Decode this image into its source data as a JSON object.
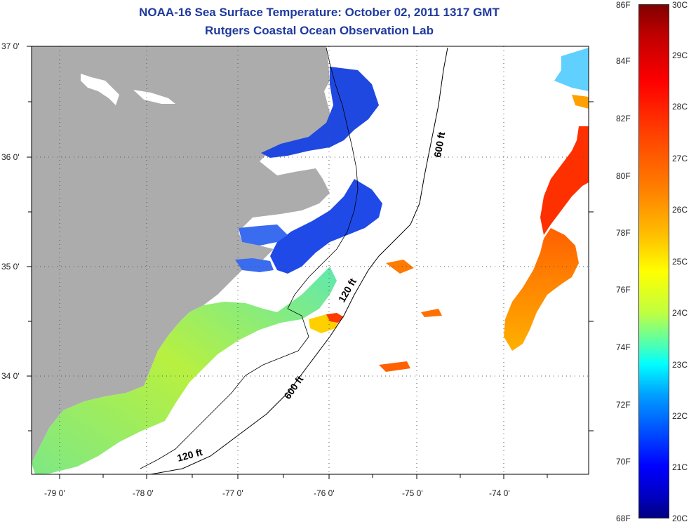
{
  "title": {
    "line1": "NOAA-16 Sea Surface Temperature:  October 02, 2011 1317 GMT",
    "line2": "Rutgers Coastal Ocean Observation Lab"
  },
  "map": {
    "y_ticks": [
      "37 0'",
      "36 0'",
      "35 0'",
      "34 0'"
    ],
    "x_ticks": [
      "-79 0'",
      "-78 0'",
      "-77 0'",
      "-76 0'",
      "-75 0'",
      "-74 0'"
    ],
    "contour_labels": [
      "600 ft",
      "120 ft",
      "600 ft",
      "120 ft"
    ],
    "colors": {
      "land": "#acacac",
      "ocean_no_data": "#ffffff",
      "contour": "#000000",
      "grid": "#555555"
    }
  },
  "colorbar": {
    "fahrenheit_labels": [
      "86F",
      "84F",
      "82F",
      "80F",
      "78F",
      "76F",
      "74F",
      "72F",
      "70F",
      "68F"
    ],
    "celsius_labels": [
      "30C",
      "29C",
      "28C",
      "27C",
      "26C",
      "25C",
      "24C",
      "23C",
      "22C",
      "21C",
      "20C"
    ]
  }
}
